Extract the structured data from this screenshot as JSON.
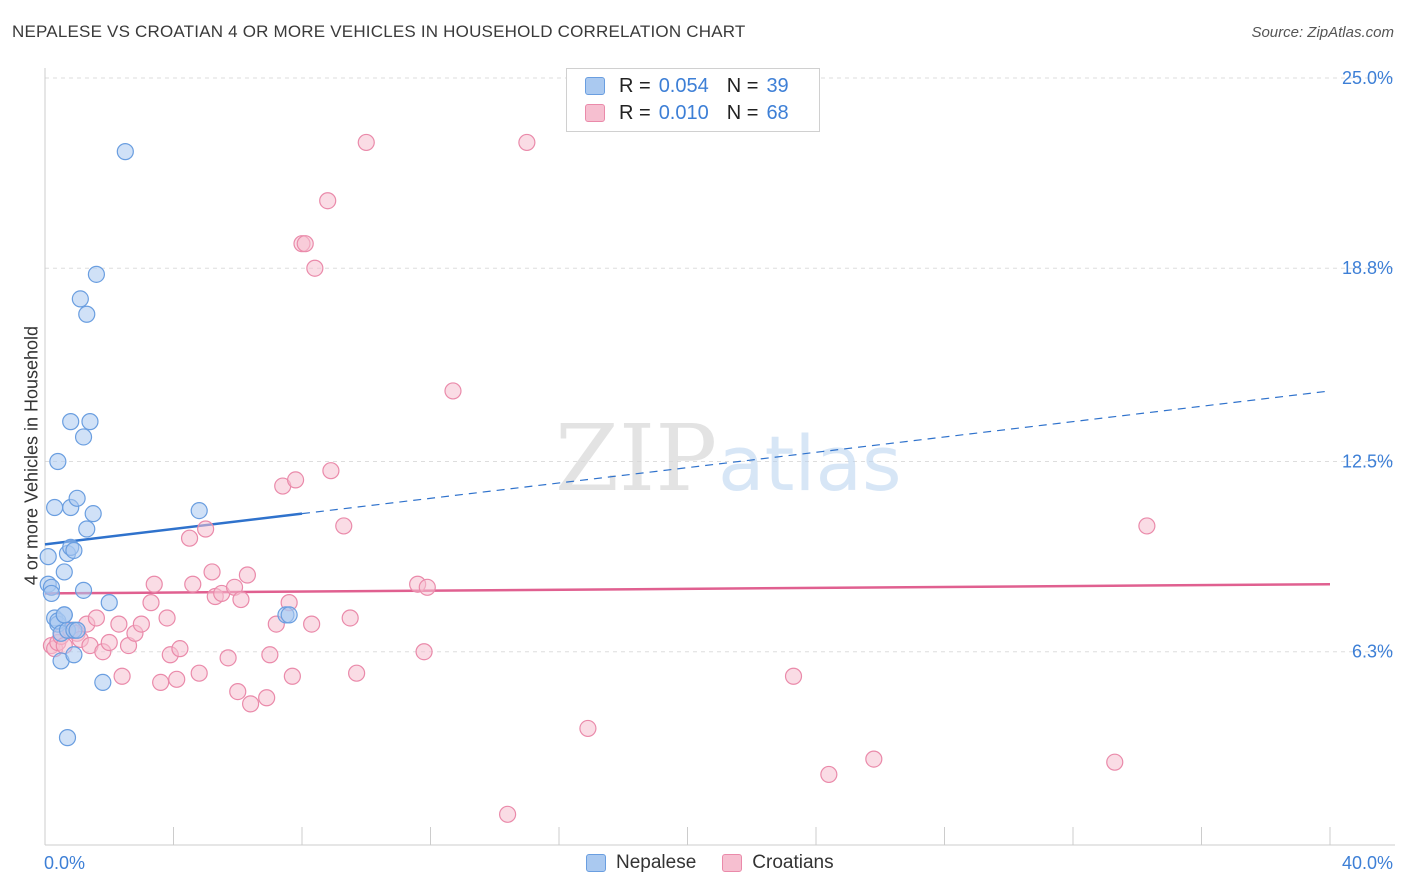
{
  "title": "NEPALESE VS CROATIAN 4 OR MORE VEHICLES IN HOUSEHOLD CORRELATION CHART",
  "source": "Source: ZipAtlas.com",
  "legend": {
    "r_label": "R =",
    "n_label": "N =",
    "nepalese": {
      "r": "0.054",
      "n": "39"
    },
    "croatians": {
      "r": "0.010",
      "n": "68"
    }
  },
  "bottom_legend": {
    "nepalese": "Nepalese",
    "croatians": "Croatians"
  },
  "watermark": "ZIPatlas",
  "colors": {
    "nepalese_fill": "#aac9f0",
    "nepalese_stroke": "#6a9ee0",
    "nepalese_line": "#2f72cc",
    "croatians_fill": "#f6bfd0",
    "croatians_stroke": "#ea8aaa",
    "croatians_line": "#e06090",
    "axis_text": "#3d7fd6"
  },
  "chart_data": {
    "type": "scatter",
    "title": "NEPALESE VS CROATIAN 4 OR MORE VEHICLES IN HOUSEHOLD CORRELATION CHART",
    "xlabel": "",
    "ylabel": "4 or more Vehicles in Household",
    "xlim": [
      0,
      40
    ],
    "ylim": [
      0,
      25
    ],
    "x_tick_labels": [
      "0.0%",
      "40.0%"
    ],
    "y_ticks": [
      6.3,
      12.5,
      18.8,
      25.0
    ],
    "y_tick_labels": [
      "6.3%",
      "12.5%",
      "18.8%",
      "25.0%"
    ],
    "series": [
      {
        "name": "Nepalese",
        "points": [
          [
            0.1,
            9.4
          ],
          [
            0.1,
            8.5
          ],
          [
            0.2,
            8.4
          ],
          [
            0.2,
            8.2
          ],
          [
            0.3,
            11.0
          ],
          [
            0.3,
            7.4
          ],
          [
            0.4,
            7.2
          ],
          [
            0.4,
            7.3
          ],
          [
            0.4,
            12.5
          ],
          [
            0.5,
            6.9
          ],
          [
            0.5,
            6.0
          ],
          [
            0.6,
            7.5
          ],
          [
            0.6,
            8.9
          ],
          [
            0.7,
            9.5
          ],
          [
            0.7,
            3.5
          ],
          [
            0.7,
            7.0
          ],
          [
            0.8,
            13.8
          ],
          [
            0.8,
            9.7
          ],
          [
            0.8,
            11.0
          ],
          [
            0.9,
            9.6
          ],
          [
            0.9,
            6.2
          ],
          [
            0.9,
            7.0
          ],
          [
            1.0,
            11.3
          ],
          [
            1.0,
            7.0
          ],
          [
            1.1,
            17.8
          ],
          [
            1.2,
            8.3
          ],
          [
            1.2,
            13.3
          ],
          [
            1.3,
            10.3
          ],
          [
            1.3,
            17.3
          ],
          [
            1.4,
            13.8
          ],
          [
            1.5,
            10.8
          ],
          [
            1.6,
            18.6
          ],
          [
            1.8,
            5.3
          ],
          [
            2.0,
            7.9
          ],
          [
            2.5,
            22.6
          ],
          [
            4.8,
            10.9
          ],
          [
            7.5,
            7.5
          ],
          [
            7.6,
            7.5
          ],
          [
            0.6,
            7.5
          ]
        ]
      },
      {
        "name": "Croatians",
        "points": [
          [
            0.2,
            6.5
          ],
          [
            0.3,
            6.4
          ],
          [
            0.4,
            6.6
          ],
          [
            0.5,
            6.8
          ],
          [
            0.6,
            6.5
          ],
          [
            0.7,
            7.0
          ],
          [
            0.8,
            7.0
          ],
          [
            1.0,
            6.9
          ],
          [
            1.1,
            6.7
          ],
          [
            1.3,
            7.2
          ],
          [
            1.4,
            6.5
          ],
          [
            1.6,
            7.4
          ],
          [
            1.8,
            6.3
          ],
          [
            2.0,
            6.6
          ],
          [
            2.3,
            7.2
          ],
          [
            2.4,
            5.5
          ],
          [
            2.6,
            6.5
          ],
          [
            2.8,
            6.9
          ],
          [
            3.0,
            7.2
          ],
          [
            3.3,
            7.9
          ],
          [
            3.4,
            8.5
          ],
          [
            3.6,
            5.3
          ],
          [
            3.8,
            7.4
          ],
          [
            3.9,
            6.2
          ],
          [
            4.1,
            5.4
          ],
          [
            4.2,
            6.4
          ],
          [
            4.5,
            10.0
          ],
          [
            4.6,
            8.5
          ],
          [
            4.8,
            5.6
          ],
          [
            5.0,
            10.3
          ],
          [
            5.2,
            8.9
          ],
          [
            5.3,
            8.1
          ],
          [
            5.5,
            8.2
          ],
          [
            5.7,
            6.1
          ],
          [
            5.9,
            8.4
          ],
          [
            6.0,
            5.0
          ],
          [
            6.1,
            8.0
          ],
          [
            6.3,
            8.8
          ],
          [
            6.4,
            4.6
          ],
          [
            6.9,
            4.8
          ],
          [
            7.0,
            6.2
          ],
          [
            7.2,
            7.2
          ],
          [
            7.4,
            11.7
          ],
          [
            7.6,
            7.9
          ],
          [
            7.7,
            5.5
          ],
          [
            7.8,
            11.9
          ],
          [
            8.0,
            19.6
          ],
          [
            8.1,
            19.6
          ],
          [
            8.3,
            7.2
          ],
          [
            8.4,
            18.8
          ],
          [
            8.8,
            21.0
          ],
          [
            8.9,
            12.2
          ],
          [
            9.3,
            10.4
          ],
          [
            9.5,
            7.4
          ],
          [
            9.7,
            5.6
          ],
          [
            10.0,
            22.9
          ],
          [
            11.6,
            8.5
          ],
          [
            11.8,
            6.3
          ],
          [
            11.9,
            8.4
          ],
          [
            12.7,
            14.8
          ],
          [
            14.4,
            1.0
          ],
          [
            15.0,
            22.9
          ],
          [
            16.9,
            3.8
          ],
          [
            23.3,
            5.5
          ],
          [
            24.4,
            2.3
          ],
          [
            25.8,
            2.8
          ],
          [
            33.3,
            2.7
          ],
          [
            34.3,
            10.4
          ]
        ]
      }
    ],
    "trend_lines": [
      {
        "series": "Nepalese",
        "x_start": 0,
        "y_start": 9.8,
        "x_solid_end": 8.0,
        "y_solid_end": 10.8,
        "x_end": 40,
        "y_end": 14.8
      },
      {
        "series": "Croatians",
        "x_start": 0,
        "y_start": 8.2,
        "x_end": 40,
        "y_end": 8.5
      }
    ],
    "legend_placement": "top-center"
  }
}
